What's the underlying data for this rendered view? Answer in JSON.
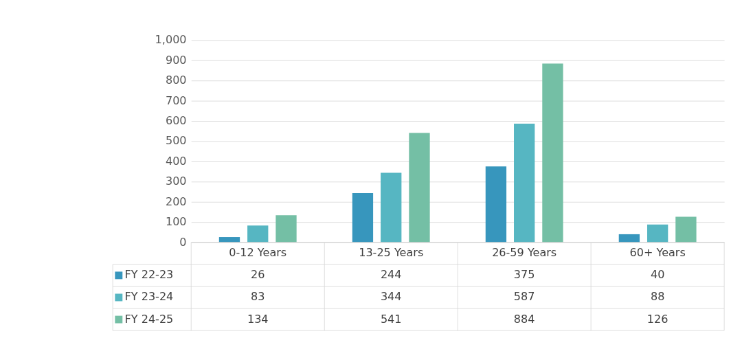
{
  "chart_data": {
    "type": "bar",
    "categories": [
      "0-12 Years",
      "13-25 Years",
      "26-59 Years",
      "60+ Years"
    ],
    "series": [
      {
        "name": "FY 22-23",
        "color": "#3796bd",
        "values": [
          26,
          244,
          375,
          40
        ]
      },
      {
        "name": "FY 23-24",
        "color": "#56b6c2",
        "values": [
          83,
          344,
          587,
          88
        ]
      },
      {
        "name": "FY 24-25",
        "color": "#74bfa5",
        "values": [
          134,
          541,
          884,
          126
        ]
      }
    ],
    "ylim": [
      0,
      1000
    ],
    "yticks": [
      0,
      100,
      200,
      300,
      400,
      500,
      600,
      700,
      800,
      900,
      {
        "value": 1000,
        "label": "1,000"
      }
    ],
    "grid": "y",
    "legend": "bottom",
    "data_labels": true
  }
}
